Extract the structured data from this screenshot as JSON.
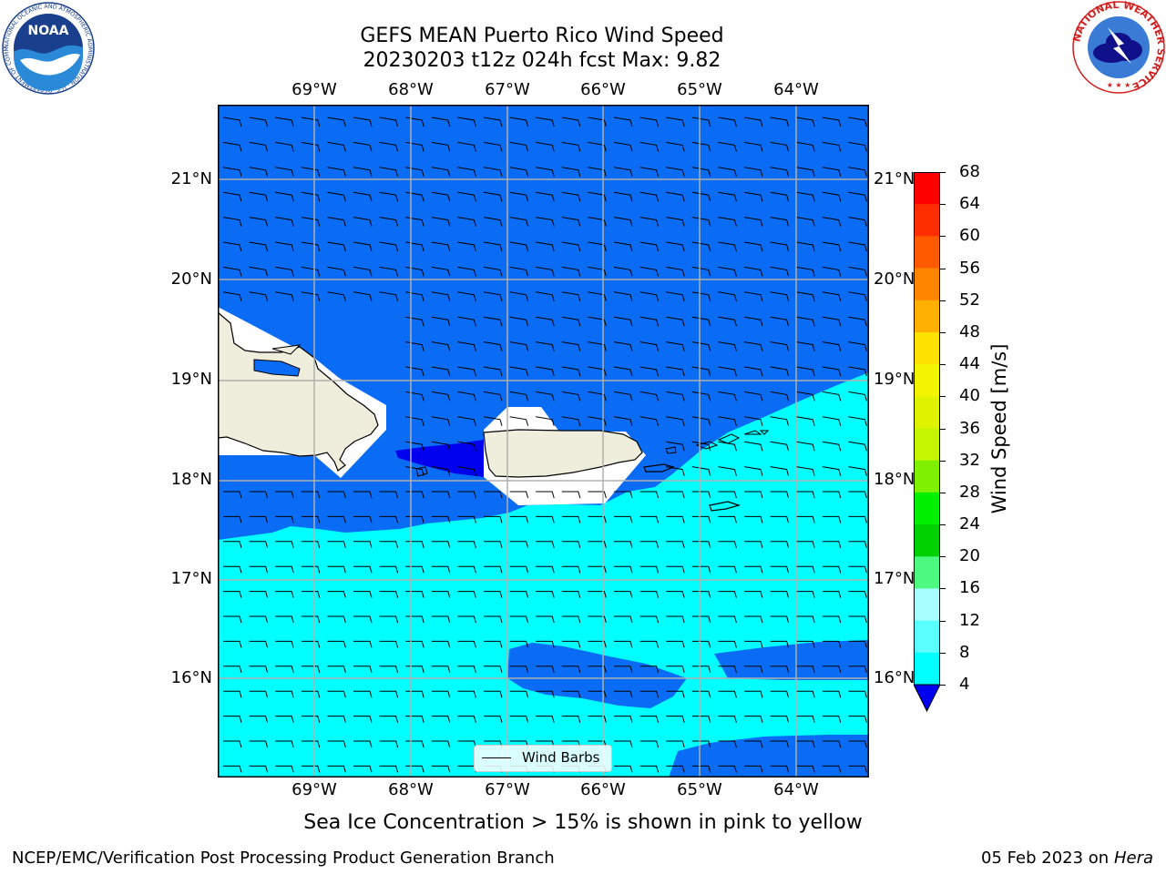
{
  "title_line1": "GEFS MEAN Puerto Rico Wind Speed",
  "title_line2": "20230203 t12z 024h fcst   Max: 9.82",
  "logos": {
    "noaa": {
      "text": "NOAA",
      "ring_text": "NATIONAL OCEANIC AND ATMOSPHERIC ADMINISTRATION · U.S. DEPARTMENT OF COMMERCE"
    },
    "nws": {
      "ring_text": "NATIONAL WEATHER SERVICE"
    }
  },
  "map": {
    "lon_labels": [
      "69°W",
      "68°W",
      "67°W",
      "66°W",
      "65°W",
      "64°W"
    ],
    "lat_labels": [
      "21°N",
      "20°N",
      "19°N",
      "18°N",
      "17°N",
      "16°N"
    ],
    "lon_range": [
      -70,
      -63.25
    ],
    "lat_range": [
      15,
      21.75
    ],
    "legend_label": "Wind Barbs",
    "field_colors": {
      "4-8": "#0a6cf5",
      "8-12": "#00ffff",
      "below-4": "#0000ee",
      "land": "#efeddc"
    }
  },
  "colorbar": {
    "label": "Wind Speed [m/s]",
    "ticks": [
      "68",
      "64",
      "60",
      "56",
      "52",
      "48",
      "44",
      "40",
      "36",
      "32",
      "28",
      "24",
      "20",
      "16",
      "12",
      "8",
      "4"
    ],
    "colors": [
      "#ff0000",
      "#ff2e00",
      "#ff5a00",
      "#ff8400",
      "#ffb000",
      "#ffe100",
      "#f3f500",
      "#dff300",
      "#c5f500",
      "#7ef000",
      "#00f000",
      "#00d000",
      "#4cfa80",
      "#a8ffff",
      "#5affff",
      "#00ffff",
      "#0a6cf5"
    ],
    "under_color": "#0000ee"
  },
  "note": "Sea Ice Concentration > 15% is shown in pink to yellow",
  "footer_left": "NCEP/EMC/Verification Post Processing Product Generation Branch",
  "footer_date": "05 Feb 2023 on",
  "footer_machine": "Hera"
}
